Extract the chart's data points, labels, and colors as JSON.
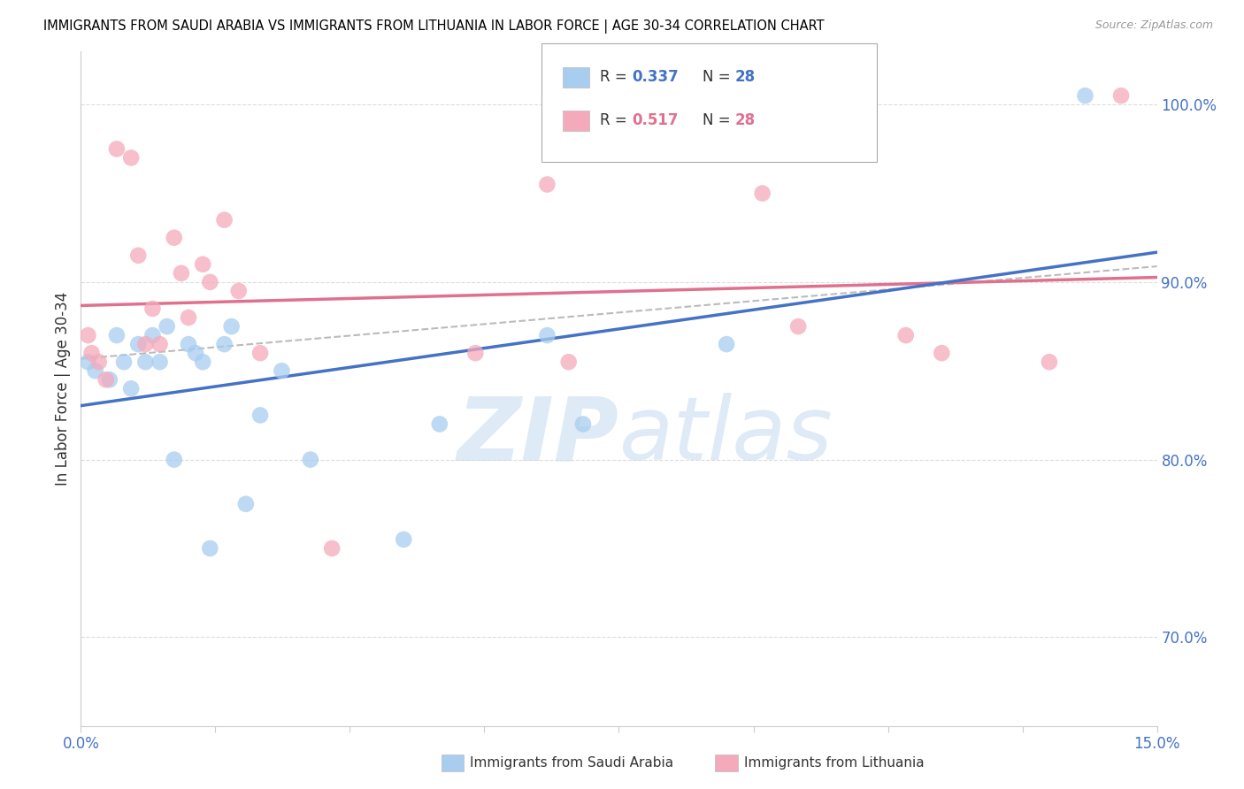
{
  "title": "IMMIGRANTS FROM SAUDI ARABIA VS IMMIGRANTS FROM LITHUANIA IN LABOR FORCE | AGE 30-34 CORRELATION CHART",
  "source": "Source: ZipAtlas.com",
  "ylabel": "In Labor Force | Age 30-34",
  "legend_R_blue": "0.337",
  "legend_N_blue": "28",
  "legend_R_pink": "0.517",
  "legend_N_pink": "28",
  "blue_dot_color": "#A8CDEF",
  "pink_dot_color": "#F5AABB",
  "blue_line_color": "#4472C4",
  "pink_line_color": "#E07090",
  "gray_dash_color": "#AAAAAA",
  "axis_color": "#4472C4",
  "grid_color": "#DDDDDD",
  "watermark_color": "#D5E8F5",
  "xlim": [
    0.0,
    15.0
  ],
  "ylim": [
    65.0,
    103.0
  ],
  "yticks": [
    70.0,
    80.0,
    90.0,
    100.0
  ],
  "ytick_labels": [
    "70.0%",
    "80.0%",
    "90.0%",
    "100.0%"
  ],
  "xticks": [
    0.0,
    1.875,
    3.75,
    5.625,
    7.5,
    9.375,
    11.25,
    13.125,
    15.0
  ],
  "xtick_labels": [
    "0.0%",
    "",
    "",
    "",
    "",
    "",
    "",
    "",
    "15.0%"
  ],
  "saudi_x": [
    0.1,
    0.2,
    0.4,
    0.5,
    0.6,
    0.7,
    0.8,
    0.9,
    1.0,
    1.1,
    1.2,
    1.3,
    1.5,
    1.6,
    1.7,
    1.8,
    2.0,
    2.1,
    2.3,
    2.5,
    2.8,
    3.2,
    4.5,
    5.0,
    6.5,
    7.0,
    9.0,
    14.0
  ],
  "saudi_y": [
    85.5,
    85.0,
    84.5,
    87.0,
    85.5,
    84.0,
    86.5,
    85.5,
    87.0,
    85.5,
    87.5,
    80.0,
    86.5,
    86.0,
    85.5,
    75.0,
    86.5,
    87.5,
    77.5,
    82.5,
    85.0,
    80.0,
    75.5,
    82.0,
    87.0,
    82.0,
    86.5,
    100.5
  ],
  "lith_x": [
    0.1,
    0.15,
    0.25,
    0.35,
    0.5,
    0.7,
    0.8,
    0.9,
    1.0,
    1.1,
    1.3,
    1.4,
    1.5,
    1.7,
    1.8,
    2.0,
    2.2,
    2.5,
    3.5,
    5.5,
    6.5,
    6.8,
    9.5,
    10.0,
    11.5,
    12.0,
    13.5,
    14.5
  ],
  "lith_y": [
    87.0,
    86.0,
    85.5,
    84.5,
    97.5,
    97.0,
    91.5,
    86.5,
    88.5,
    86.5,
    92.5,
    90.5,
    88.0,
    91.0,
    90.0,
    93.5,
    89.5,
    86.0,
    75.0,
    86.0,
    95.5,
    85.5,
    95.0,
    87.5,
    87.0,
    86.0,
    85.5,
    100.5
  ]
}
